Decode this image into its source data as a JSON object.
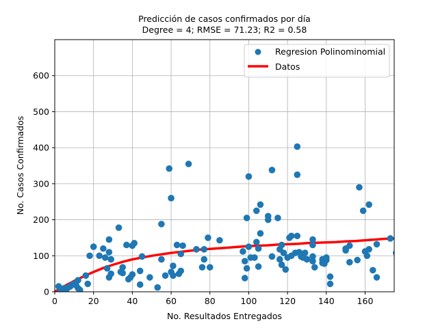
{
  "chart_data": {
    "type": "scatter",
    "title": "Predicción de casos confirmados por día",
    "subtitle": "Degree = 4; RMSE = 71.23; R2 = 0.58",
    "xlabel": "No. Resultados Entregados",
    "ylabel": "No. Casos Confirmados",
    "xlim": [
      0,
      175
    ],
    "ylim": [
      0,
      700
    ],
    "xticks": [
      0,
      20,
      40,
      60,
      80,
      100,
      120,
      140,
      160
    ],
    "yticks": [
      0,
      100,
      200,
      300,
      400,
      500,
      600
    ],
    "grid": true,
    "legend_position": "top-right",
    "colors": {
      "scatter": "#1f77b4",
      "line": "#ff0000",
      "grid": "#b0b0b0"
    },
    "legend": [
      {
        "label": "Regresion Polinominomial",
        "marker": "circle"
      },
      {
        "label": "Datos",
        "marker": "line"
      }
    ],
    "series": [
      {
        "name": "Regresion Polinominomial",
        "kind": "scatter",
        "points": [
          [
            2,
            15
          ],
          [
            3,
            5
          ],
          [
            4,
            8
          ],
          [
            5,
            10
          ],
          [
            6,
            7
          ],
          [
            7,
            12
          ],
          [
            8,
            15
          ],
          [
            9,
            20
          ],
          [
            10,
            22
          ],
          [
            11,
            18
          ],
          [
            12,
            10
          ],
          [
            13,
            5
          ],
          [
            12,
            32
          ],
          [
            16,
            45
          ],
          [
            17,
            22
          ],
          [
            18,
            100
          ],
          [
            20,
            125
          ],
          [
            23,
            100
          ],
          [
            25,
            120
          ],
          [
            26,
            95
          ],
          [
            27,
            65
          ],
          [
            28,
            145
          ],
          [
            28,
            110
          ],
          [
            28,
            40
          ],
          [
            29,
            90
          ],
          [
            29,
            50
          ],
          [
            33,
            178
          ],
          [
            34,
            55
          ],
          [
            35,
            52
          ],
          [
            35,
            68
          ],
          [
            37,
            130
          ],
          [
            38,
            35
          ],
          [
            39,
            40
          ],
          [
            40,
            128
          ],
          [
            40,
            48
          ],
          [
            41,
            135
          ],
          [
            44,
            58
          ],
          [
            44,
            20
          ],
          [
            45,
            98
          ],
          [
            49,
            40
          ],
          [
            53,
            12
          ],
          [
            55,
            188
          ],
          [
            55,
            90
          ],
          [
            57,
            45
          ],
          [
            59,
            342
          ],
          [
            60,
            260
          ],
          [
            60,
            55
          ],
          [
            61,
            45
          ],
          [
            61,
            72
          ],
          [
            63,
            130
          ],
          [
            64,
            50
          ],
          [
            65,
            58
          ],
          [
            65,
            105
          ],
          [
            66,
            128
          ],
          [
            69,
            355
          ],
          [
            73,
            118
          ],
          [
            76,
            68
          ],
          [
            77,
            90
          ],
          [
            77,
            118
          ],
          [
            79,
            150
          ],
          [
            80,
            68
          ],
          [
            85,
            143
          ],
          [
            97,
            112
          ],
          [
            98,
            38
          ],
          [
            98,
            85
          ],
          [
            99,
            205
          ],
          [
            99,
            65
          ],
          [
            100,
            320
          ],
          [
            100,
            125
          ],
          [
            101,
            95
          ],
          [
            103,
            95
          ],
          [
            104,
            225
          ],
          [
            104,
            138
          ],
          [
            105,
            70
          ],
          [
            105,
            120
          ],
          [
            106,
            162
          ],
          [
            106,
            242
          ],
          [
            110,
            210
          ],
          [
            110,
            200
          ],
          [
            112,
            338
          ],
          [
            112,
            98
          ],
          [
            115,
            205
          ],
          [
            116,
            90
          ],
          [
            116,
            118
          ],
          [
            117,
            130
          ],
          [
            117,
            75
          ],
          [
            118,
            108
          ],
          [
            119,
            62
          ],
          [
            120,
            95
          ],
          [
            121,
            150
          ],
          [
            122,
            155
          ],
          [
            122,
            100
          ],
          [
            124,
            108
          ],
          [
            125,
            403
          ],
          [
            125,
            325
          ],
          [
            125,
            155
          ],
          [
            126,
            110
          ],
          [
            127,
            98
          ],
          [
            128,
            95
          ],
          [
            129,
            108
          ],
          [
            130,
            90
          ],
          [
            133,
            145
          ],
          [
            133,
            130
          ],
          [
            133,
            98
          ],
          [
            133,
            85
          ],
          [
            134,
            68
          ],
          [
            138,
            90
          ],
          [
            138,
            80
          ],
          [
            139,
            78
          ],
          [
            140,
            88
          ],
          [
            140,
            95
          ],
          [
            142,
            42
          ],
          [
            142,
            22
          ],
          [
            150,
            120
          ],
          [
            150,
            115
          ],
          [
            152,
            128
          ],
          [
            152,
            82
          ],
          [
            156,
            88
          ],
          [
            157,
            290
          ],
          [
            159,
            225
          ],
          [
            160,
            112
          ],
          [
            161,
            100
          ],
          [
            162,
            118
          ],
          [
            162,
            242
          ],
          [
            164,
            60
          ],
          [
            166,
            132
          ],
          [
            166,
            40
          ],
          [
            173,
            148
          ],
          [
            176,
            108
          ]
        ]
      },
      {
        "name": "Datos",
        "kind": "line",
        "points": [
          [
            0,
            0
          ],
          [
            5,
            16
          ],
          [
            10,
            30
          ],
          [
            15,
            43
          ],
          [
            20,
            55
          ],
          [
            25,
            66
          ],
          [
            30,
            75
          ],
          [
            35,
            83
          ],
          [
            40,
            90
          ],
          [
            45,
            95
          ],
          [
            50,
            100
          ],
          [
            55,
            104
          ],
          [
            60,
            108
          ],
          [
            65,
            111
          ],
          [
            70,
            114
          ],
          [
            75,
            117
          ],
          [
            80,
            119
          ],
          [
            85,
            121
          ],
          [
            90,
            123
          ],
          [
            95,
            125
          ],
          [
            100,
            127
          ],
          [
            105,
            128
          ],
          [
            110,
            129
          ],
          [
            115,
            131
          ],
          [
            120,
            132
          ],
          [
            125,
            133
          ],
          [
            130,
            135
          ],
          [
            135,
            136
          ],
          [
            140,
            137
          ],
          [
            145,
            138
          ],
          [
            150,
            140
          ],
          [
            155,
            141
          ],
          [
            160,
            143
          ],
          [
            165,
            145
          ],
          [
            170,
            147
          ],
          [
            175,
            148
          ]
        ]
      }
    ]
  }
}
